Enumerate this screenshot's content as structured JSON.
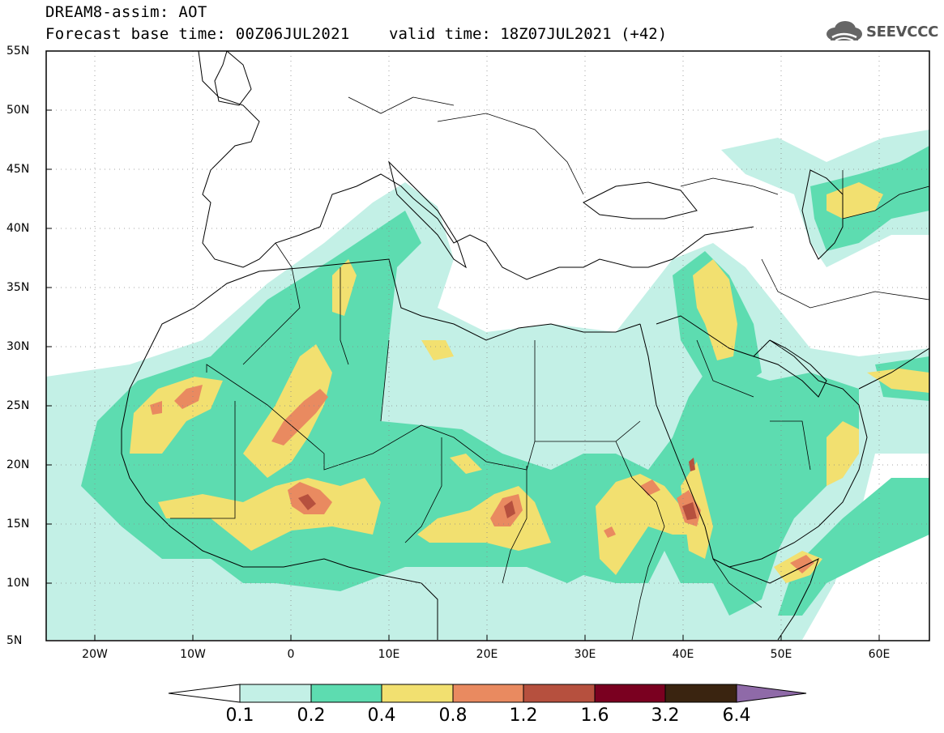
{
  "header": {
    "model_line": "DREAM8-assim: AOT",
    "base_time_line": "Forecast base time: 00Z06JUL2021",
    "valid_time_line": "valid time: 18Z07JUL2021 (+42)",
    "logo_text": "SEEVCCC"
  },
  "map": {
    "lat_labels": [
      "55N",
      "50N",
      "45N",
      "40N",
      "35N",
      "30N",
      "25N",
      "20N",
      "15N",
      "10N",
      "5N"
    ],
    "lon_labels": [
      "20W",
      "10W",
      "0",
      "10E",
      "20E",
      "30E",
      "40E",
      "50E",
      "60E"
    ],
    "lon_range": [
      -25,
      65
    ],
    "lat_range": [
      5,
      55
    ],
    "gridlines": "dotted"
  },
  "colorbar": {
    "levels": [
      "0.1",
      "0.2",
      "0.4",
      "0.8",
      "1.2",
      "1.6",
      "3.2",
      "6.4"
    ],
    "colors": [
      "#c3f0e6",
      "#5ddcb0",
      "#f2e070",
      "#e98a60",
      "#b6503e",
      "#7a0020",
      "#3a2410",
      "#8f6aa8"
    ]
  },
  "icons": {
    "logo": "cloud-logo-icon"
  }
}
